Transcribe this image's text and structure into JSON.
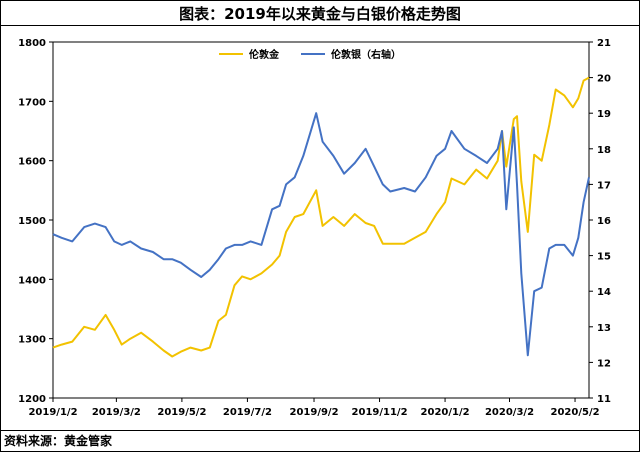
{
  "title": "图表：2019年以来黄金与白银价格走势图",
  "source": "资料来源：黄金管家",
  "chart_data": {
    "type": "line",
    "title": "图表：2019年以来黄金与白银价格走势图",
    "x_tick_labels": [
      "2019/1/2",
      "2019/3/2",
      "2019/5/2",
      "2019/7/2",
      "2019/9/2",
      "2019/11/2",
      "2020/1/2",
      "2020/3/2",
      "2020/5/2"
    ],
    "x_ticks": [
      "2019-01-02",
      "2019-03-02",
      "2019-05-02",
      "2019-07-02",
      "2019-09-02",
      "2019-11-02",
      "2020-01-02",
      "2020-03-02",
      "2020-05-02"
    ],
    "xlim": [
      "2019-01-02",
      "2020-05-15"
    ],
    "y_left": {
      "ylim": [
        1200,
        1800
      ],
      "ticks": [
        1200,
        1300,
        1400,
        1500,
        1600,
        1700,
        1800
      ]
    },
    "y_right": {
      "ylim": [
        11,
        21
      ],
      "ticks": [
        11,
        12,
        13,
        14,
        15,
        16,
        17,
        18,
        19,
        20,
        21
      ]
    },
    "legend_position": "top-center",
    "series": [
      {
        "name": "伦敦金",
        "axis": "left",
        "color": "#F2C200",
        "x": [
          "2019-01-02",
          "2019-01-10",
          "2019-01-20",
          "2019-01-31",
          "2019-02-10",
          "2019-02-20",
          "2019-02-28",
          "2019-03-07",
          "2019-03-15",
          "2019-03-25",
          "2019-04-05",
          "2019-04-15",
          "2019-04-23",
          "2019-05-01",
          "2019-05-10",
          "2019-05-20",
          "2019-05-28",
          "2019-06-05",
          "2019-06-12",
          "2019-06-20",
          "2019-06-27",
          "2019-07-05",
          "2019-07-15",
          "2019-07-25",
          "2019-08-01",
          "2019-08-07",
          "2019-08-15",
          "2019-08-23",
          "2019-09-04",
          "2019-09-10",
          "2019-09-20",
          "2019-09-30",
          "2019-10-10",
          "2019-10-20",
          "2019-10-28",
          "2019-11-05",
          "2019-11-12",
          "2019-11-25",
          "2019-12-05",
          "2019-12-15",
          "2019-12-25",
          "2020-01-02",
          "2020-01-08",
          "2020-01-20",
          "2020-01-31",
          "2020-02-10",
          "2020-02-20",
          "2020-02-24",
          "2020-02-28",
          "2020-03-06",
          "2020-03-09",
          "2020-03-13",
          "2020-03-19",
          "2020-03-25",
          "2020-04-01",
          "2020-04-08",
          "2020-04-14",
          "2020-04-22",
          "2020-04-30",
          "2020-05-05",
          "2020-05-10",
          "2020-05-15"
        ],
        "values": [
          1285,
          1290,
          1295,
          1320,
          1315,
          1340,
          1315,
          1290,
          1300,
          1310,
          1295,
          1280,
          1270,
          1278,
          1285,
          1280,
          1285,
          1330,
          1340,
          1390,
          1405,
          1400,
          1410,
          1425,
          1440,
          1480,
          1505,
          1510,
          1550,
          1490,
          1505,
          1490,
          1510,
          1495,
          1490,
          1460,
          1460,
          1460,
          1470,
          1480,
          1510,
          1530,
          1570,
          1560,
          1585,
          1570,
          1600,
          1650,
          1590,
          1670,
          1675,
          1565,
          1480,
          1610,
          1600,
          1660,
          1720,
          1710,
          1690,
          1705,
          1735,
          1740
        ]
      },
      {
        "name": "伦敦银（右轴）",
        "axis": "right",
        "color": "#4472C4",
        "x": [
          "2019-01-02",
          "2019-01-10",
          "2019-01-20",
          "2019-01-31",
          "2019-02-10",
          "2019-02-20",
          "2019-02-28",
          "2019-03-07",
          "2019-03-15",
          "2019-03-25",
          "2019-04-05",
          "2019-04-15",
          "2019-04-23",
          "2019-05-01",
          "2019-05-10",
          "2019-05-20",
          "2019-05-28",
          "2019-06-05",
          "2019-06-12",
          "2019-06-20",
          "2019-06-27",
          "2019-07-05",
          "2019-07-15",
          "2019-07-25",
          "2019-08-01",
          "2019-08-07",
          "2019-08-15",
          "2019-08-23",
          "2019-09-04",
          "2019-09-10",
          "2019-09-20",
          "2019-09-30",
          "2019-10-10",
          "2019-10-20",
          "2019-10-28",
          "2019-11-05",
          "2019-11-12",
          "2019-11-25",
          "2019-12-05",
          "2019-12-15",
          "2019-12-25",
          "2020-01-02",
          "2020-01-08",
          "2020-01-20",
          "2020-01-31",
          "2020-02-10",
          "2020-02-20",
          "2020-02-24",
          "2020-02-28",
          "2020-03-06",
          "2020-03-09",
          "2020-03-13",
          "2020-03-19",
          "2020-03-25",
          "2020-04-01",
          "2020-04-08",
          "2020-04-14",
          "2020-04-22",
          "2020-04-30",
          "2020-05-05",
          "2020-05-10",
          "2020-05-15"
        ],
        "values": [
          15.6,
          15.5,
          15.4,
          15.8,
          15.9,
          15.8,
          15.4,
          15.3,
          15.4,
          15.2,
          15.1,
          14.9,
          14.9,
          14.8,
          14.6,
          14.4,
          14.6,
          14.9,
          15.2,
          15.3,
          15.3,
          15.4,
          15.3,
          16.3,
          16.4,
          17.0,
          17.2,
          17.8,
          19.0,
          18.2,
          17.8,
          17.3,
          17.6,
          18.0,
          17.5,
          17.0,
          16.8,
          16.9,
          16.8,
          17.2,
          17.8,
          18.0,
          18.5,
          18.0,
          17.8,
          17.6,
          18.0,
          18.5,
          16.3,
          18.6,
          17.0,
          14.5,
          12.2,
          14.0,
          14.1,
          15.2,
          15.3,
          15.3,
          15.0,
          15.5,
          16.5,
          17.2
        ]
      }
    ]
  }
}
